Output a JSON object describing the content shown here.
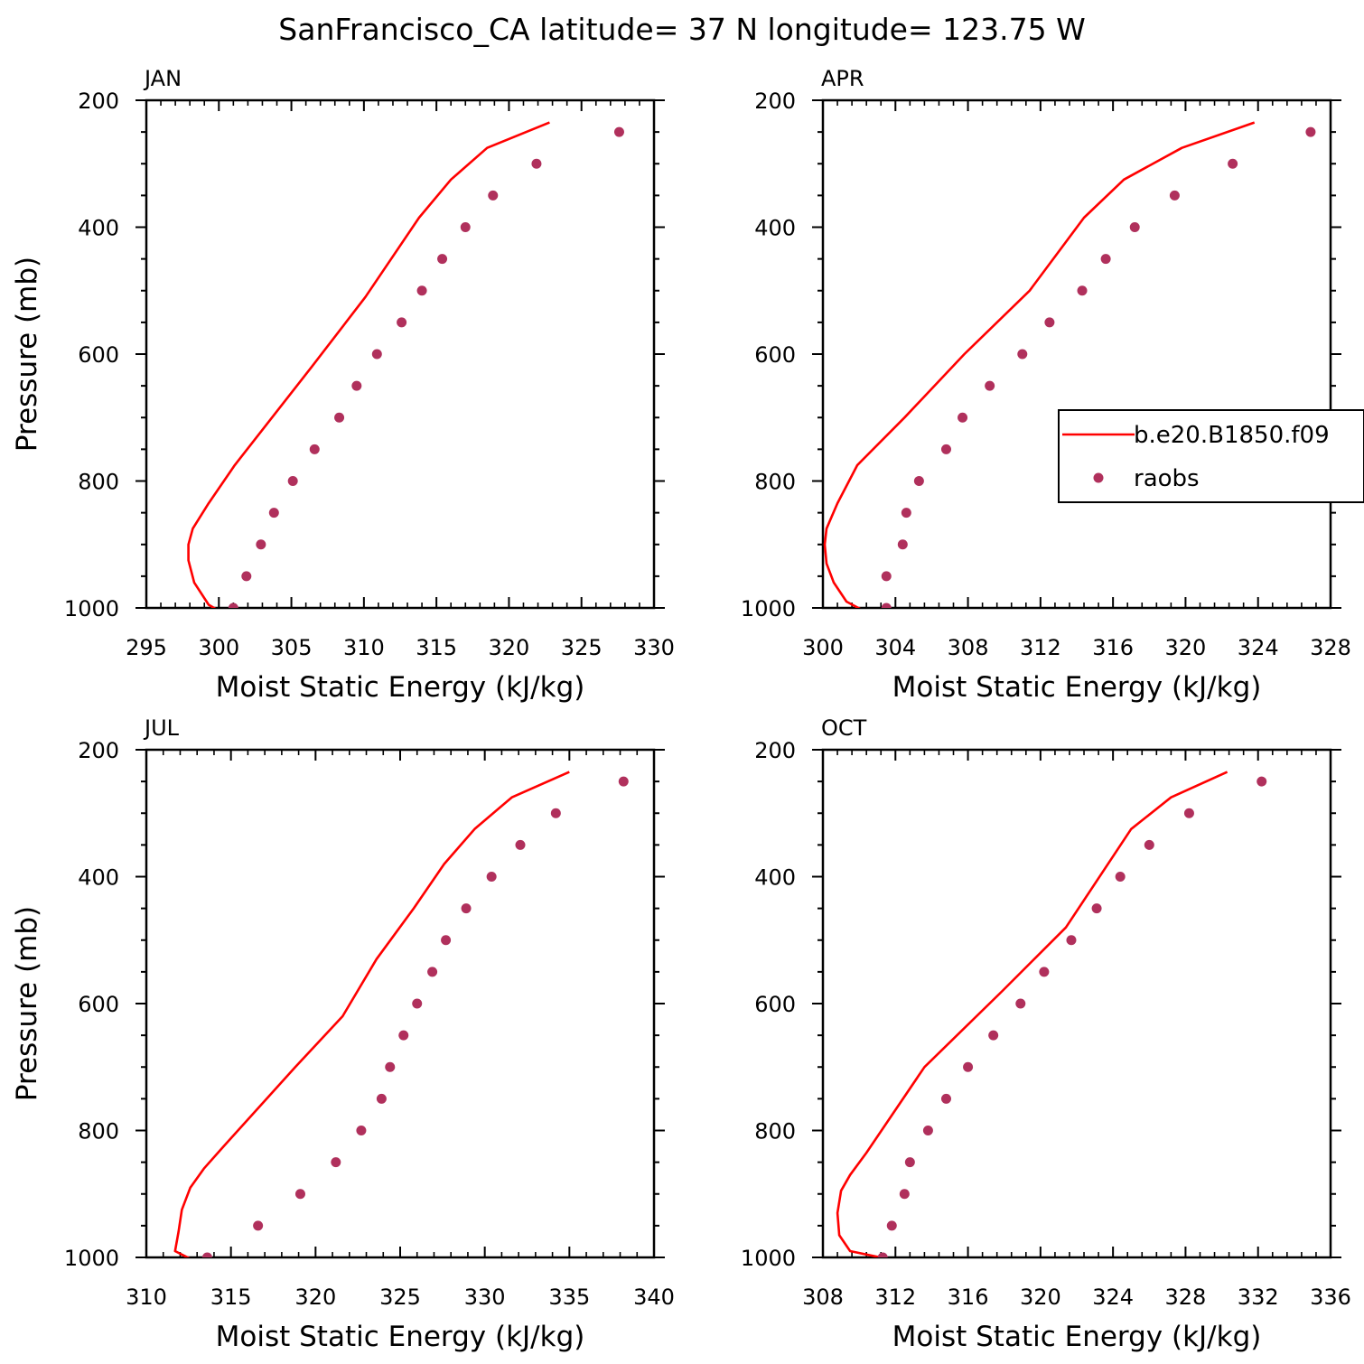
{
  "title": "SanFrancisco_CA  latitude= 37 N longitude= 123.75 W",
  "legend": {
    "model_label": "b.e20.B1850.f09",
    "obs_label": "raobs"
  },
  "colors": {
    "model_line": "#ff0000",
    "obs_marker": "#b0305c",
    "axes": "#000000"
  },
  "chart_data": [
    {
      "type": "line",
      "panel_label": "JAN",
      "xlabel": "Moist Static Energy (kJ/kg)",
      "ylabel": "Pressure (mb)",
      "xlim": [
        295,
        330
      ],
      "ylim": [
        1000,
        200
      ],
      "xticks": [
        295,
        300,
        305,
        310,
        315,
        320,
        325,
        330
      ],
      "yticks": [
        200,
        400,
        600,
        800,
        1000
      ],
      "grid": false,
      "series": [
        {
          "name": "b.e20.B1850.f09",
          "style": "line",
          "x": [
            300.4,
            299.3,
            298.3,
            297.9,
            297.9,
            298.2,
            299.3,
            301.1,
            306.4,
            310.1,
            313.8,
            316.0,
            318.5,
            322.8
          ],
          "y": [
            1010,
            995,
            960,
            925,
            900,
            875,
            835,
            775,
            620,
            510,
            385,
            325,
            275,
            235
          ]
        },
        {
          "name": "raobs",
          "style": "markers",
          "x": [
            301.0,
            301.9,
            302.9,
            303.8,
            305.1,
            306.6,
            308.3,
            309.5,
            310.9,
            312.6,
            314.0,
            315.4,
            317.0,
            318.9,
            321.9,
            327.6
          ],
          "y": [
            1000,
            950,
            900,
            850,
            800,
            750,
            700,
            650,
            600,
            550,
            500,
            450,
            400,
            350,
            300,
            250
          ]
        }
      ]
    },
    {
      "type": "line",
      "panel_label": "APR",
      "xlabel": "Moist Static Energy (kJ/kg)",
      "ylabel": "",
      "xlim": [
        300,
        328
      ],
      "ylim": [
        1000,
        200
      ],
      "xticks": [
        300,
        304,
        308,
        312,
        316,
        320,
        324,
        328
      ],
      "yticks": [
        200,
        400,
        600,
        800,
        1000
      ],
      "grid": false,
      "legend": "right",
      "series": [
        {
          "name": "b.e20.B1850.f09",
          "style": "line",
          "x": [
            302.6,
            301.3,
            300.6,
            300.2,
            300.1,
            300.2,
            300.8,
            301.9,
            304.5,
            307.8,
            311.4,
            314.4,
            316.6,
            319.8,
            323.8
          ],
          "y": [
            1010,
            990,
            960,
            930,
            900,
            875,
            835,
            775,
            700,
            600,
            500,
            385,
            325,
            275,
            235
          ]
        },
        {
          "name": "raobs",
          "style": "markers",
          "x": [
            303.5,
            303.5,
            304.4,
            304.6,
            305.3,
            306.8,
            307.7,
            309.2,
            311.0,
            312.5,
            314.3,
            315.6,
            317.2,
            319.4,
            322.6,
            326.9
          ],
          "y": [
            1000,
            950,
            900,
            850,
            800,
            750,
            700,
            650,
            600,
            550,
            500,
            450,
            400,
            350,
            300,
            250
          ]
        }
      ]
    },
    {
      "type": "line",
      "panel_label": "JUL",
      "xlabel": "Moist Static Energy (kJ/kg)",
      "ylabel": "Pressure (mb)",
      "xlim": [
        310,
        340
      ],
      "ylim": [
        1000,
        200
      ],
      "xticks": [
        310,
        315,
        320,
        325,
        330,
        335,
        340
      ],
      "yticks": [
        200,
        400,
        600,
        800,
        1000
      ],
      "grid": false,
      "series": [
        {
          "name": "b.e20.B1850.f09",
          "style": "line",
          "x": [
            312.8,
            311.7,
            311.9,
            312.1,
            312.6,
            313.4,
            314.4,
            318.8,
            321.6,
            323.6,
            325.8,
            327.6,
            329.4,
            331.6,
            335.0
          ],
          "y": [
            1005,
            990,
            960,
            925,
            890,
            860,
            830,
            700,
            620,
            530,
            450,
            380,
            325,
            275,
            235
          ]
        },
        {
          "name": "raobs",
          "style": "markers",
          "x": [
            313.6,
            316.6,
            319.1,
            321.2,
            322.7,
            323.9,
            324.4,
            325.2,
            326.0,
            326.9,
            327.7,
            328.9,
            330.4,
            332.1,
            334.2,
            338.2
          ],
          "y": [
            1000,
            950,
            900,
            850,
            800,
            750,
            700,
            650,
            600,
            550,
            500,
            450,
            400,
            350,
            300,
            250
          ]
        }
      ]
    },
    {
      "type": "line",
      "panel_label": "OCT",
      "xlabel": "Moist Static Energy (kJ/kg)",
      "ylabel": "",
      "xlim": [
        308,
        336
      ],
      "ylim": [
        1000,
        200
      ],
      "xticks": [
        308,
        312,
        316,
        320,
        324,
        328,
        332,
        336
      ],
      "yticks": [
        200,
        400,
        600,
        800,
        1000
      ],
      "grid": false,
      "series": [
        {
          "name": "b.e20.B1850.f09",
          "style": "line",
          "x": [
            312.0,
            309.5,
            308.9,
            308.8,
            309.0,
            309.5,
            310.4,
            313.6,
            317.9,
            321.4,
            325.0,
            327.2,
            330.3
          ],
          "y": [
            1005,
            990,
            965,
            930,
            895,
            870,
            835,
            700,
            580,
            480,
            325,
            275,
            235
          ]
        },
        {
          "name": "raobs",
          "style": "markers",
          "x": [
            311.3,
            311.8,
            312.5,
            312.8,
            313.8,
            314.8,
            316.0,
            317.4,
            318.9,
            320.2,
            321.7,
            323.1,
            324.4,
            326.0,
            328.2,
            332.2
          ],
          "y": [
            1000,
            950,
            900,
            850,
            800,
            750,
            700,
            650,
            600,
            550,
            500,
            450,
            400,
            350,
            300,
            250
          ]
        }
      ]
    }
  ]
}
